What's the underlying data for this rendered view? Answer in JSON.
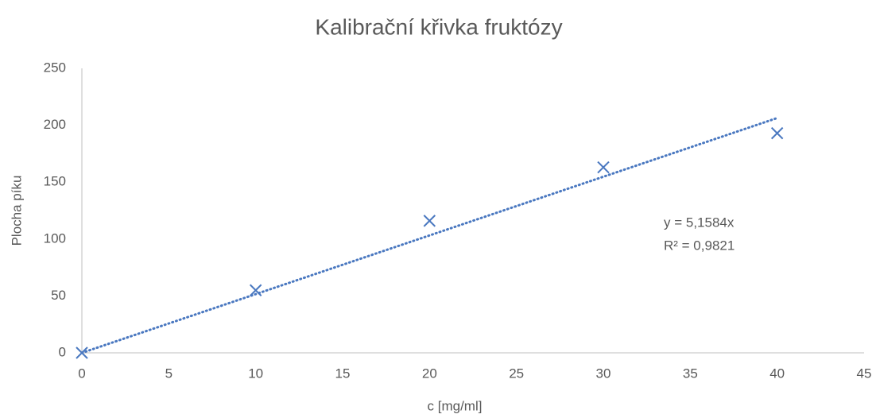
{
  "chart_data": {
    "type": "scatter",
    "title": "Kalibrační křivka fruktózy",
    "x_label": "c [mg/ml]",
    "y_label": "Plocha píku",
    "series": [
      {
        "color": "#4a78c0",
        "x": [
          0,
          10,
          20,
          30,
          40
        ],
        "values": [
          0,
          55,
          116,
          163,
          193
        ]
      }
    ],
    "trendline": {
      "slope": 5.1584,
      "color": "#4a78c0",
      "equation": "y = 5,1584x",
      "r2": "R² = 0,9821"
    },
    "xlim": [
      0,
      45
    ],
    "xticks": [
      0,
      5,
      10,
      15,
      20,
      25,
      30,
      35,
      40,
      45
    ],
    "ylim": [
      0,
      250
    ],
    "yticks": [
      0,
      50,
      100,
      150,
      200,
      250
    ],
    "grid": false
  }
}
